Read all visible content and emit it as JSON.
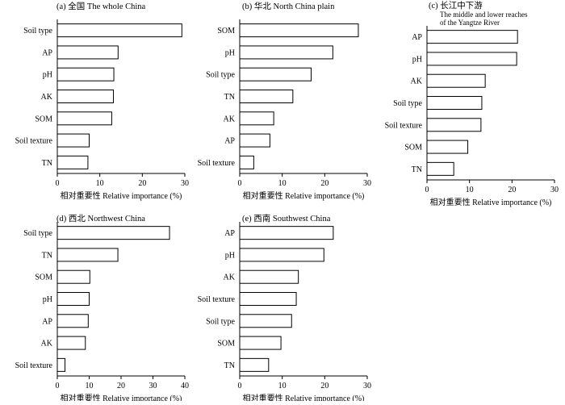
{
  "chart_data": [
    {
      "type": "bar",
      "orientation": "horizontal",
      "title": "(a) 全国 The whole China",
      "categories": [
        "Soil type",
        "AP",
        "pH",
        "AK",
        "SOM",
        "Soil texture",
        "TN"
      ],
      "values": [
        29.3,
        14.3,
        13.3,
        13.2,
        12.8,
        7.5,
        7.2
      ],
      "xlim": [
        0,
        30
      ],
      "xticks": [
        0,
        10,
        20,
        30
      ],
      "xlabel": "相对重要性 Relative importance (%)",
      "grid": false
    },
    {
      "type": "bar",
      "orientation": "horizontal",
      "title": "(b) 华北 North China plain",
      "categories": [
        "SOM",
        "pH",
        "Soil type",
        "TN",
        "AK",
        "AP",
        "Soil texture"
      ],
      "values": [
        27.9,
        21.9,
        16.8,
        12.5,
        8.0,
        7.1,
        3.3
      ],
      "xlim": [
        0,
        30
      ],
      "xticks": [
        0,
        10,
        20,
        30
      ],
      "xlabel": "相对重要性 Relative importance (%)",
      "grid": false
    },
    {
      "type": "bar",
      "orientation": "horizontal",
      "title": "(c) 长江中下游",
      "subtitle": [
        "The middle and lower reaches",
        "of the Yangtze River"
      ],
      "categories": [
        "AP",
        "pH",
        "AK",
        "Soil type",
        "Soil texture",
        "SOM",
        "TN"
      ],
      "values": [
        21.3,
        21.1,
        13.7,
        12.9,
        12.7,
        9.6,
        6.3
      ],
      "xlim": [
        0,
        30
      ],
      "xticks": [
        0,
        10,
        20,
        30
      ],
      "xlabel": "相对重要性 Relative importance (%)",
      "grid": false
    },
    {
      "type": "bar",
      "orientation": "horizontal",
      "title": "(d) 西北 Northwest China",
      "categories": [
        "Soil type",
        "TN",
        "SOM",
        "pH",
        "AP",
        "AK",
        "Soil texture"
      ],
      "values": [
        35.2,
        19.0,
        10.2,
        10.0,
        9.7,
        8.8,
        2.4
      ],
      "xlim": [
        0,
        40
      ],
      "xticks": [
        0,
        10,
        20,
        30,
        40
      ],
      "xlabel": "相对重要性 Relative importance (%)",
      "grid": false
    },
    {
      "type": "bar",
      "orientation": "horizontal",
      "title": "(e) 西南 Southwest China",
      "categories": [
        "AP",
        "pH",
        "AK",
        "Soil texture",
        "Soil type",
        "SOM",
        "TN"
      ],
      "values": [
        22.0,
        19.8,
        13.8,
        13.3,
        12.2,
        9.7,
        6.8
      ],
      "xlim": [
        0,
        30
      ],
      "xticks": [
        0,
        10,
        20,
        30
      ],
      "xlabel": "相对重要性 Relative importance (%)",
      "grid": false
    }
  ]
}
